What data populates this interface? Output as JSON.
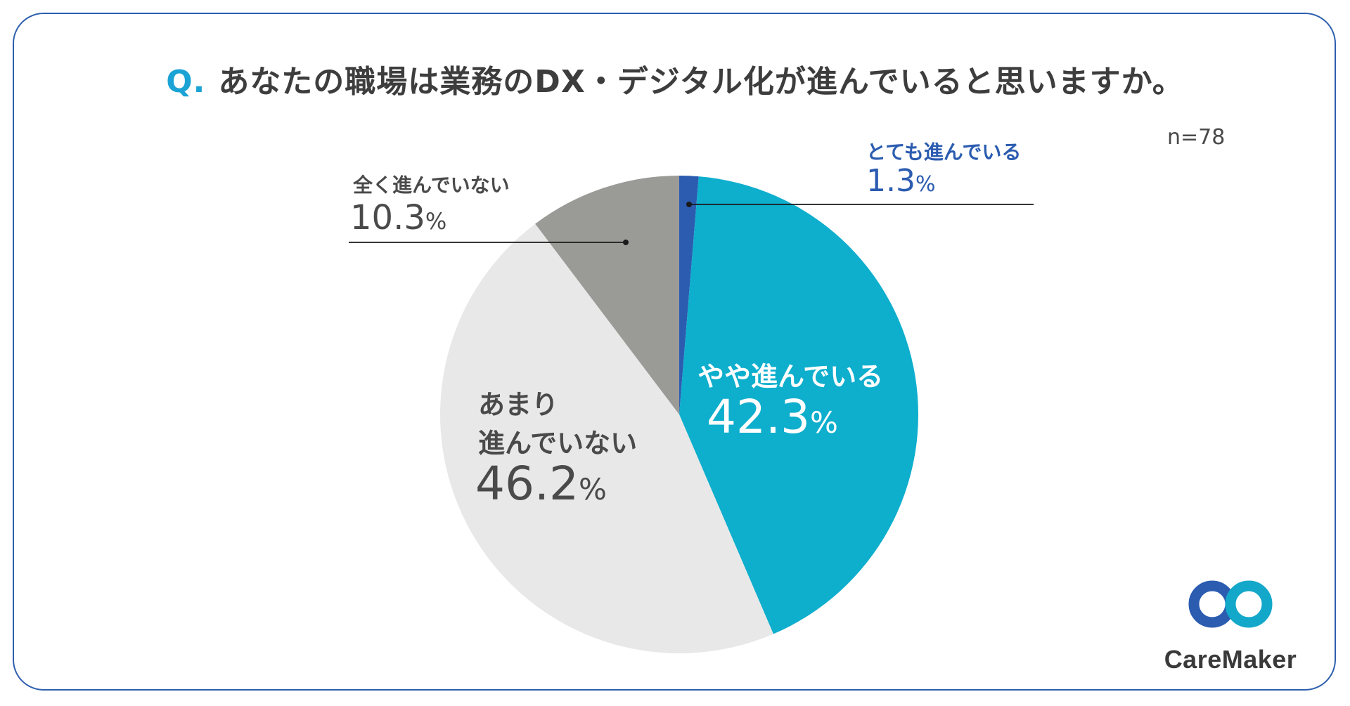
{
  "title": {
    "prefix": "Q.",
    "text": "あなたの職場は業務のDX・デジタル化が進んでいると思いますか。"
  },
  "sample_size": "n=78",
  "colors": {
    "very_advanced": "#2b5cb0",
    "somewhat_advanced": "#0eaecd",
    "not_much": "#e8e8e8",
    "not_at_all": "#9a9b97",
    "border": "#2d5fae",
    "title_accent": "#1aa3d4"
  },
  "chart_data": {
    "type": "pie",
    "title": "あなたの職場は業務のDX・デジタル化が進んでいると思いますか。",
    "start": "12 o'clock, clockwise",
    "n": 78,
    "unit": "%",
    "slices": [
      {
        "key": "very_advanced",
        "label": "とても進んでいる",
        "value": 1.3
      },
      {
        "key": "somewhat_advanced",
        "label": "やや進んでいる",
        "value": 42.3
      },
      {
        "key": "not_much",
        "label": "あまり進んでいない",
        "label_lines": [
          "あまり",
          "進んでいない"
        ],
        "value": 46.2
      },
      {
        "key": "not_at_all",
        "label": "全く進んでいない",
        "value": 10.3
      }
    ]
  },
  "labels": {
    "very_advanced": {
      "name": "とても進んでいる",
      "pct": "1.3",
      "sign": "%"
    },
    "somewhat_advanced": {
      "name": "やや進んでいる",
      "pct": "42.3",
      "sign": "%"
    },
    "not_much": {
      "name_line1": "あまり",
      "name_line2": "進んでいない",
      "pct": "46.2",
      "sign": "%"
    },
    "not_at_all": {
      "name": "全く進んでいない",
      "pct": "10.3",
      "sign": "%"
    }
  },
  "logo": {
    "brand": "CareMaker",
    "icon": "infinity-loop-icon",
    "colors": [
      "#2b5cb0",
      "#13a8c9"
    ]
  }
}
